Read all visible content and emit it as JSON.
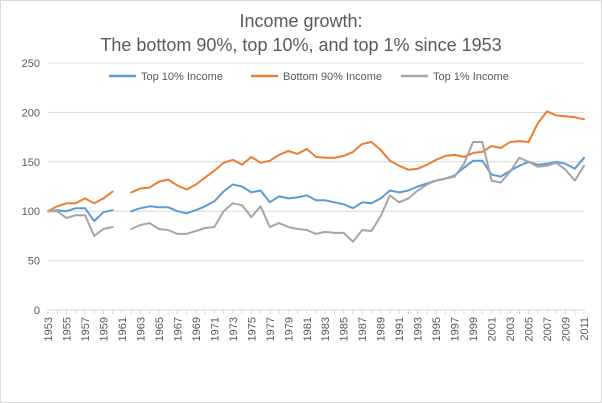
{
  "chart_data": {
    "type": "line",
    "title_lines": [
      "Income growth:",
      "The bottom 90%, top 10%, and top 1% since 1953"
    ],
    "xlabel": "",
    "ylabel": "",
    "ylim": [
      0,
      250
    ],
    "yticks": [
      0,
      50,
      100,
      150,
      200,
      250
    ],
    "x_start": 1953,
    "x_end": 2011,
    "xtick_labels": [
      "1953",
      "1955",
      "1957",
      "1959",
      "1961",
      "1963",
      "1965",
      "1967",
      "1969",
      "1971",
      "1973",
      "1975",
      "1977",
      "1979",
      "1981",
      "1983",
      "1985",
      "1987",
      "1989",
      "1991",
      "1993",
      "1995",
      "1997",
      "1999",
      "2001",
      "2003",
      "2005",
      "2007",
      "2009",
      "2011"
    ],
    "grid": true,
    "legend_position": "top",
    "series": [
      {
        "name": "Top 10% Income",
        "color": "#5b9bd5",
        "values": [
          100,
          101,
          100,
          103,
          103,
          90,
          99,
          101,
          null,
          100,
          103,
          105,
          104,
          104,
          100,
          98,
          101,
          105,
          110,
          120,
          127,
          125,
          119,
          121,
          109,
          115,
          113,
          114,
          116,
          111,
          111,
          109,
          107,
          103,
          109,
          108,
          113,
          121,
          119,
          121,
          125,
          128,
          131,
          133,
          136,
          144,
          151,
          151,
          137,
          135,
          141,
          146,
          150,
          147,
          148,
          150,
          148,
          143,
          154
        ],
        "gaps": [
          8
        ]
      },
      {
        "name": "Bottom 90% Income",
        "color": "#ed7d31",
        "values": [
          100,
          105,
          108,
          108,
          113,
          108,
          113,
          120,
          null,
          119,
          123,
          124,
          130,
          132,
          126,
          122,
          127,
          134,
          141,
          149,
          152,
          147,
          155,
          149,
          151,
          157,
          161,
          158,
          163,
          155,
          154,
          154,
          156,
          160,
          168,
          170,
          162,
          151,
          146,
          142,
          143,
          147,
          152,
          156,
          157,
          155,
          159,
          160,
          166,
          164,
          170,
          171,
          170,
          189,
          201,
          197,
          196,
          195,
          193
        ],
        "gaps": [
          8
        ]
      },
      {
        "name": "Top 1% Income",
        "color": "#a5a5a5",
        "values": [
          100,
          100,
          93,
          96,
          96,
          75,
          82,
          84,
          null,
          82,
          86,
          88,
          82,
          81,
          77,
          77,
          80,
          83,
          84,
          100,
          108,
          106,
          94,
          105,
          84,
          88,
          84,
          82,
          81,
          77,
          79,
          78,
          78,
          69,
          81,
          80,
          95,
          116,
          109,
          113,
          121,
          127,
          131,
          133,
          135,
          148,
          170,
          170,
          131,
          129,
          140,
          154,
          150,
          145,
          146,
          149,
          142,
          131,
          146
        ],
        "gaps": [
          8
        ]
      }
    ]
  }
}
